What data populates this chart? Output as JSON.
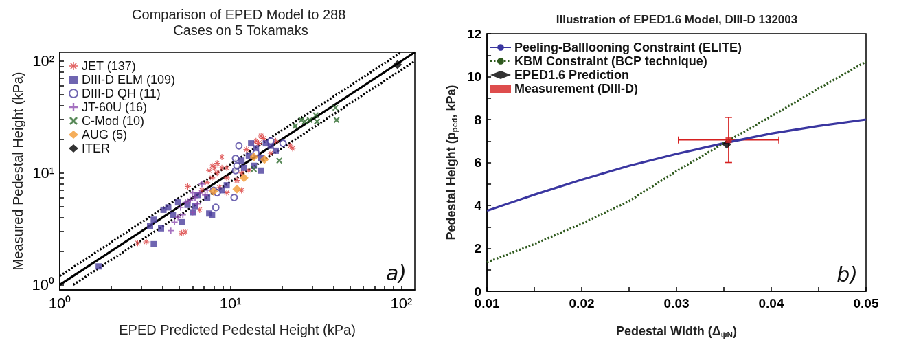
{
  "chart_data": [
    {
      "type": "scatter",
      "title": "Comparison of EPED Model to 288 Cases on 5 Tokamaks",
      "xlabel": "EPED Predicted Pedestal Height (kPa)",
      "ylabel": "Measured Pedestal Height (kPa)",
      "log": "xy",
      "grid": false,
      "legend": "top left",
      "annotations": [
        "a)"
      ],
      "xlim": [
        1,
        120
      ],
      "ylim": [
        0.9,
        120
      ],
      "xticks": [
        {
          "value": 1,
          "label": "10⁰"
        },
        {
          "value": 2,
          "label": null
        },
        {
          "value": 3,
          "label": null
        },
        {
          "value": 4,
          "label": null
        },
        {
          "value": 5,
          "label": null
        },
        {
          "value": 6,
          "label": null
        },
        {
          "value": 7,
          "label": null
        },
        {
          "value": 8,
          "label": null
        },
        {
          "value": 9,
          "label": null
        },
        {
          "value": 10,
          "label": "10¹"
        },
        {
          "value": 20,
          "label": null
        },
        {
          "value": 30,
          "label": null
        },
        {
          "value": 40,
          "label": null
        },
        {
          "value": 50,
          "label": null
        },
        {
          "value": 60,
          "label": null
        },
        {
          "value": 70,
          "label": null
        },
        {
          "value": 80,
          "label": null
        },
        {
          "value": 90,
          "label": null
        },
        {
          "value": 100,
          "label": "10²"
        }
      ],
      "yticks": [
        {
          "value": 1,
          "label": "10⁰"
        },
        {
          "value": 2,
          "label": null
        },
        {
          "value": 3,
          "label": null
        },
        {
          "value": 4,
          "label": null
        },
        {
          "value": 5,
          "label": null
        },
        {
          "value": 6,
          "label": null
        },
        {
          "value": 7,
          "label": null
        },
        {
          "value": 8,
          "label": null
        },
        {
          "value": 9,
          "label": null
        },
        {
          "value": 10,
          "label": "10¹"
        },
        {
          "value": 20,
          "label": null
        },
        {
          "value": 30,
          "label": null
        },
        {
          "value": 40,
          "label": null
        },
        {
          "value": 50,
          "label": null
        },
        {
          "value": 60,
          "label": null
        },
        {
          "value": 70,
          "label": null
        },
        {
          "value": 80,
          "label": null
        },
        {
          "value": 90,
          "label": null
        },
        {
          "value": 100,
          "label": "10²"
        }
      ],
      "series": [
        {
          "type": "line",
          "color": "#000000",
          "marker": "none",
          "line_style": "solid",
          "x": [
            1,
            120
          ],
          "values": [
            1,
            120
          ]
        },
        {
          "type": "line",
          "color": "#000000",
          "marker": "none",
          "line_style": "dotted",
          "x": [
            1,
            100
          ],
          "values": [
            1.2,
            120
          ]
        },
        {
          "type": "line",
          "color": "#000000",
          "marker": "none",
          "line_style": "dotted",
          "x": [
            1.2,
            120
          ],
          "values": [
            1,
            100
          ]
        },
        {
          "name": "JET (137)",
          "color": "#d93a3a",
          "marker": "star",
          "x": [
            2.86,
            3.21,
            5.18,
            5.45,
            5.62,
            7.5,
            7.8,
            8.06,
            8.35,
            8.9,
            7.8,
            8.9,
            9.5,
            8.6,
            10.5,
            11.6,
            12.4,
            14.1,
            15.1,
            15.6,
            14.6,
            18.4,
            22.4,
            23.1,
            10.5,
            9.5,
            8.35,
            7.3,
            6.8,
            9.5,
            10.9,
            12.8,
            17.2,
            13.7,
            11.6,
            6.6
          ],
          "values": [
            2.36,
            2.42,
            2.9,
            2.97,
            7.57,
            10.5,
            9.04,
            11.1,
            10.0,
            13.9,
            11.6,
            11.1,
            9.04,
            7.4,
            null,
            10.0,
            16.2,
            19.3,
            21.4,
            20.3,
            18.4,
            19.3,
            17.5,
            16.6,
            null,
            11.1,
            12.2,
            8.2,
            7.0,
            6.65,
            8.58,
            10.5,
            15.0,
            null,
            7.0,
            4.68
          ]
        },
        {
          "name": "DIII-D ELM (109)",
          "color": "#4b3f9e",
          "marker": "square",
          "x": [
            1.69,
            3.38,
            3.55,
            3.92,
            4.32,
            4.6,
            5.18,
            5.6,
            6.2,
            7.3,
            7.5,
            7.8,
            8.9,
            9.5,
            10.9,
            12.0,
            12.8,
            14.1,
            15.1,
            15.1,
            16.1,
            17.2,
            18.4,
            13.7,
            11.6,
            6.41,
            4.93,
            4.05,
            3.55,
            6.0,
            13.2
          ],
          "values": [
            1.46,
            3.37,
            2.31,
            3.2,
            4.92,
            4.23,
            3.63,
            5.18,
            5.05,
            6.03,
            4.34,
            4.23,
            7.0,
            7.76,
            null,
            11.1,
            14.3,
            16.6,
            13.5,
            10.5,
            18.4,
            17.5,
            15.8,
            11.6,
            12.9,
            6.34,
            5.45,
            4.68,
            3.82,
            4.45,
            18.4
          ]
        },
        {
          "name": "DIII-D QH (11)",
          "color": "#4b3f9e",
          "marker": "circle",
          "x": [
            8.2,
            10.5,
            10.7,
            10.7,
            11.2,
            7.95,
            20.3,
            10.9,
            17.2,
            14.1,
            8.35
          ],
          "values": [
            4.92,
            6.03,
            13.5,
            10.5,
            17.5,
            7.0,
            18.4,
            11.6,
            19.3,
            15.0,
            6.65
          ]
        },
        {
          "name": "JT-60U (16)",
          "color": "#8e4fb0",
          "marker": "plus",
          "x": [
            4.47,
            4.93,
            6.0,
            5.8,
            6.8,
            6.6,
            5.26,
            6.2,
            5.62,
            7.3,
            5.1,
            4.7,
            5.45,
            6.0,
            6.4,
            7.1
          ],
          "values": [
            3.05,
            4.02,
            4.45,
            5.73,
            7.96,
            6.65,
            4.23,
            6.03,
            5.58,
            7.0,
            4.92,
            3.63,
            5.45,
            6.65,
            5.3,
            6.34
          ]
        },
        {
          "name": "C-Mod (10)",
          "color": "#2e6b2e",
          "marker": "cross",
          "x": [
            23.9,
            26,
            27.3,
            29.1,
            31.6,
            32.1,
            41.1,
            41.8,
            19.3,
            13.7
          ],
          "values": [
            26.2,
            29.7,
            28.9,
            29.7,
            32.8,
            28.9,
            38.2,
            29.7,
            12.9,
            10.8
          ]
        },
        {
          "name": "AUG (5)",
          "color": "#f39a32",
          "marker": "diamond",
          "x": [
            13.7,
            15.8,
            12.0,
            10.9,
            7.95
          ],
          "values": [
            13.9,
            13.2,
            9.04,
            7.18,
            6.84
          ]
        },
        {
          "name": "ITER",
          "color": "#000000",
          "marker": "diamond",
          "x": [
            95
          ],
          "values": [
            93
          ]
        }
      ]
    },
    {
      "type": "line",
      "title": "Illustration of EPED1.6 Model, DIII-D 132003",
      "xlabel": "Pedestal Width (Δ$_{ψN}$)",
      "ylabel": "Pedestal Height (p$_{ped}$, kPa)",
      "grid": false,
      "legend": "top left",
      "annotations": [
        "b)"
      ],
      "xlim": [
        0.01,
        0.05
      ],
      "ylim": [
        0,
        12
      ],
      "xticks": [
        0.01,
        {
          "value": 0.015,
          "label": null
        },
        0.02,
        {
          "value": 0.025,
          "label": null
        },
        0.03,
        {
          "value": 0.035,
          "label": null
        },
        0.04,
        {
          "value": 0.045,
          "label": null
        },
        0.05
      ],
      "yticks": [
        0,
        {
          "value": 1,
          "label": null
        },
        2,
        {
          "value": 3,
          "label": null
        },
        4,
        {
          "value": 5,
          "label": null
        },
        6,
        {
          "value": 7,
          "label": null
        },
        8,
        {
          "value": 9,
          "label": null
        },
        10,
        {
          "value": 11,
          "label": null
        },
        12
      ],
      "series": [
        {
          "name": "Peeling-Balllooning Constraint (ELITE)",
          "type": "line",
          "color": "#3a36a0",
          "marker": "none",
          "line_style": "solid",
          "x": [
            0.01,
            0.015,
            0.02,
            0.025,
            0.03,
            0.035,
            0.04,
            0.045,
            0.05
          ],
          "values": [
            3.75,
            4.5,
            5.2,
            5.85,
            6.4,
            6.9,
            7.35,
            7.7,
            8.0
          ]
        },
        {
          "name": "KBM Constraint (BCP technique)",
          "type": "line",
          "color": "#2f5a1e",
          "marker": "none",
          "line_style": "dotted",
          "x": [
            0.01,
            0.015,
            0.02,
            0.025,
            0.03,
            0.035,
            0.04,
            0.045,
            0.05
          ],
          "values": [
            1.35,
            2.2,
            3.15,
            4.2,
            5.6,
            6.9,
            8.15,
            9.45,
            10.7
          ]
        },
        {
          "name": "EPED1.6 Prediction",
          "type": "scatter",
          "color": "#000000",
          "marker": "diamond",
          "x": [
            0.0353
          ],
          "values": [
            6.85
          ]
        },
        {
          "name": "Measurement (DIII-D)",
          "type": "scatter",
          "color": "#d62020",
          "marker": "square",
          "x": [
            0.0355
          ],
          "values": [
            7.05
          ],
          "errors": [
            [
              6.0,
              8.1
            ]
          ],
          "xerrors": [
            [
              0.0302,
              0.0408
            ]
          ]
        }
      ]
    }
  ]
}
